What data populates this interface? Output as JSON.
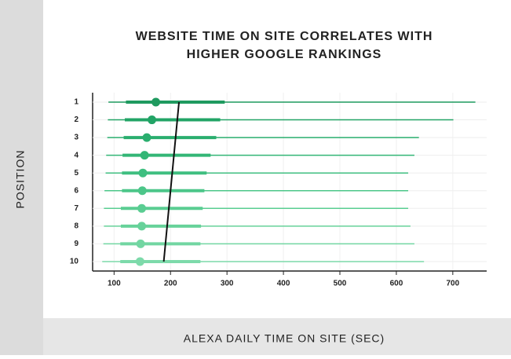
{
  "chart_data": {
    "type": "range",
    "title": [
      "WEBSITE TIME ON SITE CORRELATES WITH",
      "HIGHER GOOGLE RANKINGS"
    ],
    "x_label": "ALEXA DAILY TIME ON SITE (SEC)",
    "y_label": "POSITION",
    "categories": [
      "1",
      "2",
      "3",
      "4",
      "5",
      "6",
      "7",
      "8",
      "9",
      "10"
    ],
    "min": [
      90,
      89,
      88,
      86,
      85,
      83,
      82,
      82,
      81,
      79
    ],
    "q1": [
      121,
      119,
      117,
      115,
      114,
      114,
      112,
      112,
      111,
      111
    ],
    "median": [
      174,
      167,
      158,
      154,
      151,
      150,
      149,
      149,
      147,
      146
    ],
    "q3": [
      296,
      288,
      281,
      271,
      264,
      260,
      257,
      254,
      253,
      253
    ],
    "max": [
      740,
      701,
      640,
      632,
      621,
      621,
      621,
      625,
      632,
      649
    ],
    "colors": [
      "#1f9a5f",
      "#22a466",
      "#2aae6e",
      "#33b676",
      "#3fbf80",
      "#4cc689",
      "#5acd92",
      "#67d29a",
      "#72d6a2",
      "#7ddaaa"
    ],
    "trend": [
      215,
      188
    ],
    "trend_color": "#111111",
    "xlim": [
      62,
      760
    ],
    "xticks": [
      100,
      200,
      300,
      400,
      500,
      600,
      700
    ]
  }
}
